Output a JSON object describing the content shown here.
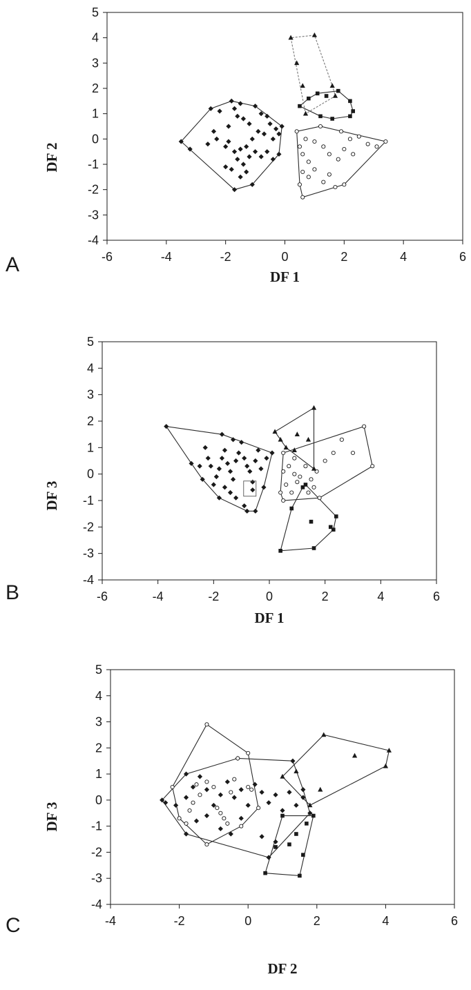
{
  "chart_data": [
    {
      "type": "scatter",
      "panel_label": "A",
      "xlabel": "DF 1",
      "ylabel": "DF 2",
      "xlim": [
        -6,
        6
      ],
      "ylim": [
        -4,
        5
      ],
      "xticks": [
        -6,
        -4,
        -2,
        0,
        2,
        4,
        6
      ],
      "yticks": [
        -4,
        -3,
        -2,
        -1,
        0,
        1,
        2,
        3,
        4,
        5
      ],
      "series": [
        {
          "marker": "diamond-filled",
          "points": [
            [
              -2.4,
              0.3
            ],
            [
              -2.3,
              0
            ],
            [
              -2.2,
              1.1
            ],
            [
              -1.8,
              1.5
            ],
            [
              -1.7,
              1.2
            ],
            [
              -1.6,
              0.9
            ],
            [
              -1.9,
              0.5
            ],
            [
              -1.5,
              1.4
            ],
            [
              -1.4,
              0.8
            ],
            [
              -1.2,
              0.6
            ],
            [
              -1.0,
              1.3
            ],
            [
              -0.8,
              1.0
            ],
            [
              -0.6,
              0.9
            ],
            [
              -0.5,
              0.6
            ],
            [
              -0.3,
              0.4
            ],
            [
              -0.2,
              0.2
            ],
            [
              -0.4,
              0
            ],
            [
              -0.7,
              0.2
            ],
            [
              -0.9,
              0.3
            ],
            [
              -1.1,
              0
            ],
            [
              -1.3,
              -0.3
            ],
            [
              -1.5,
              -0.4
            ],
            [
              -1.7,
              -0.5
            ],
            [
              -1.9,
              -0.1
            ],
            [
              -2.0,
              -0.3
            ],
            [
              -1.6,
              -0.8
            ],
            [
              -1.4,
              -1.0
            ],
            [
              -1.2,
              -0.7
            ],
            [
              -1.0,
              -0.5
            ],
            [
              -0.8,
              -0.7
            ],
            [
              -0.6,
              -0.5
            ],
            [
              -0.4,
              -0.8
            ],
            [
              -0.2,
              -0.6
            ],
            [
              -1.3,
              -1.3
            ],
            [
              -1.5,
              -1.5
            ],
            [
              -1.8,
              -1.2
            ],
            [
              -2.0,
              -1.1
            ],
            [
              -1.7,
              -2.0
            ],
            [
              -1.1,
              -1.8
            ],
            [
              -3.5,
              -0.1
            ],
            [
              -3.2,
              -0.4
            ],
            [
              -2.6,
              -0.2
            ],
            [
              -2.5,
              1.2
            ],
            [
              -0.1,
              0.5
            ]
          ]
        },
        {
          "marker": "circle-open",
          "points": [
            [
              0.4,
              0.3
            ],
            [
              0.5,
              -0.3
            ],
            [
              0.6,
              -0.6
            ],
            [
              0.8,
              -0.9
            ],
            [
              0.7,
              0
            ],
            [
              1.0,
              -0.1
            ],
            [
              1.3,
              -0.3
            ],
            [
              1.5,
              -0.6
            ],
            [
              1.8,
              -0.8
            ],
            [
              2.0,
              -0.4
            ],
            [
              2.3,
              -0.6
            ],
            [
              2.5,
              0.1
            ],
            [
              2.8,
              -0.2
            ],
            [
              3.1,
              -0.3
            ],
            [
              3.4,
              -0.1
            ],
            [
              0.6,
              -1.3
            ],
            [
              0.8,
              -1.5
            ],
            [
              1.0,
              -1.2
            ],
            [
              1.3,
              -1.7
            ],
            [
              1.5,
              -1.4
            ],
            [
              1.7,
              -1.9
            ],
            [
              2.0,
              -1.8
            ],
            [
              0.5,
              -1.8
            ],
            [
              0.6,
              -2.3
            ],
            [
              2.2,
              0
            ],
            [
              1.9,
              0.3
            ],
            [
              1.2,
              0.5
            ]
          ]
        },
        {
          "marker": "square-filled",
          "points": [
            [
              0.5,
              1.3
            ],
            [
              0.8,
              1.6
            ],
            [
              1.1,
              1.8
            ],
            [
              1.4,
              1.7
            ],
            [
              1.8,
              1.9
            ],
            [
              2.2,
              1.5
            ],
            [
              2.3,
              1.1
            ],
            [
              1.6,
              0.8
            ],
            [
              1.2,
              0.9
            ],
            [
              2.2,
              0.9
            ]
          ]
        },
        {
          "marker": "triangle-filled",
          "points": [
            [
              0.2,
              4.0
            ],
            [
              1.0,
              4.1
            ],
            [
              0.4,
              3.0
            ],
            [
              0.6,
              2.1
            ],
            [
              1.6,
              2.1
            ],
            [
              1.7,
              1.7
            ],
            [
              0.7,
              1.0
            ]
          ]
        }
      ]
    },
    {
      "type": "scatter",
      "panel_label": "B",
      "xlabel": "DF 1",
      "ylabel": "DF 3",
      "xlim": [
        -6,
        6
      ],
      "ylim": [
        -4,
        5
      ],
      "xticks": [
        -6,
        -4,
        -2,
        0,
        2,
        4,
        6
      ],
      "yticks": [
        -4,
        -3,
        -2,
        -1,
        0,
        1,
        2,
        3,
        4,
        5
      ],
      "series": [
        {
          "marker": "diamond-filled",
          "points": [
            [
              -3.7,
              1.8
            ],
            [
              -2.8,
              0.4
            ],
            [
              -2.5,
              0.3
            ],
            [
              -2.3,
              1.0
            ],
            [
              -2.2,
              0.6
            ],
            [
              -2.1,
              0.3
            ],
            [
              -1.9,
              -0.1
            ],
            [
              -1.8,
              0.2
            ],
            [
              -1.7,
              0.6
            ],
            [
              -1.6,
              0.9
            ],
            [
              -1.5,
              0.4
            ],
            [
              -1.4,
              0.1
            ],
            [
              -1.3,
              -0.2
            ],
            [
              -1.2,
              0.5
            ],
            [
              -1.1,
              0.8
            ],
            [
              -1.0,
              1.2
            ],
            [
              -0.9,
              0.6
            ],
            [
              -0.8,
              0.3
            ],
            [
              -0.7,
              0.1
            ],
            [
              -0.6,
              -0.3
            ],
            [
              -0.5,
              0.5
            ],
            [
              -0.4,
              0.9
            ],
            [
              -0.3,
              0.2
            ],
            [
              -0.2,
              -0.5
            ],
            [
              -0.1,
              0.6
            ],
            [
              -1.6,
              -0.5
            ],
            [
              -1.4,
              -0.7
            ],
            [
              -1.8,
              -0.9
            ],
            [
              -2.0,
              -0.4
            ],
            [
              -1.2,
              -0.9
            ],
            [
              -0.9,
              -1.2
            ],
            [
              -0.6,
              -0.6
            ],
            [
              -0.5,
              -1.4
            ],
            [
              -0.8,
              -1.4
            ],
            [
              -1.7,
              1.5
            ],
            [
              -1.3,
              1.3
            ],
            [
              -2.4,
              -0.2
            ],
            [
              0.1,
              0.8
            ]
          ]
        },
        {
          "marker": "circle-open",
          "points": [
            [
              0.5,
              0.8
            ],
            [
              0.7,
              0.3
            ],
            [
              0.9,
              0.6
            ],
            [
              1.1,
              -0.1
            ],
            [
              1.3,
              0.3
            ],
            [
              1.5,
              -0.2
            ],
            [
              1.7,
              0.1
            ],
            [
              2.0,
              0.5
            ],
            [
              2.3,
              0.8
            ],
            [
              2.6,
              1.3
            ],
            [
              3.0,
              0.8
            ],
            [
              3.4,
              1.8
            ],
            [
              3.7,
              0.3
            ],
            [
              0.6,
              -0.4
            ],
            [
              0.8,
              -0.7
            ],
            [
              1.0,
              -0.3
            ],
            [
              1.4,
              -0.7
            ],
            [
              1.8,
              -0.9
            ],
            [
              0.5,
              -1.0
            ],
            [
              0.4,
              -0.7
            ],
            [
              0.9,
              0
            ],
            [
              0.5,
              0.1
            ],
            [
              1.6,
              -0.5
            ]
          ]
        },
        {
          "marker": "square-filled",
          "points": [
            [
              0.4,
              -2.9
            ],
            [
              0.8,
              -1.3
            ],
            [
              1.2,
              -0.5
            ],
            [
              1.5,
              -1.8
            ],
            [
              1.6,
              -2.8
            ],
            [
              2.2,
              -2.0
            ],
            [
              2.3,
              -2.1
            ],
            [
              2.4,
              -1.6
            ],
            [
              1.3,
              -0.4
            ]
          ]
        },
        {
          "marker": "triangle-filled",
          "points": [
            [
              0.2,
              1.6
            ],
            [
              0.4,
              1.3
            ],
            [
              0.6,
              1.0
            ],
            [
              1.0,
              1.5
            ],
            [
              1.4,
              1.3
            ],
            [
              1.6,
              2.5
            ],
            [
              1.6,
              0.2
            ],
            [
              0.9,
              0.9
            ]
          ]
        }
      ]
    },
    {
      "type": "scatter",
      "panel_label": "C",
      "xlabel": "DF 2",
      "ylabel": "DF 3",
      "xlim": [
        -4,
        6
      ],
      "ylim": [
        -4,
        5
      ],
      "xticks": [
        -4,
        -2,
        0,
        2,
        4,
        6
      ],
      "yticks": [
        -4,
        -3,
        -2,
        -1,
        0,
        1,
        2,
        3,
        4,
        5
      ],
      "series": [
        {
          "marker": "diamond-filled",
          "points": [
            [
              -2.5,
              0
            ],
            [
              -2.4,
              -0.1
            ],
            [
              -2.1,
              -0.2
            ],
            [
              -1.8,
              0.1
            ],
            [
              -1.6,
              0.5
            ],
            [
              -1.4,
              0.9
            ],
            [
              -1.2,
              0.4
            ],
            [
              -1.0,
              -0.2
            ],
            [
              -0.8,
              0.2
            ],
            [
              -0.6,
              0.7
            ],
            [
              -0.4,
              0.1
            ],
            [
              -0.2,
              0.4
            ],
            [
              0,
              -0.2
            ],
            [
              0.2,
              0.6
            ],
            [
              0.4,
              0.3
            ],
            [
              0.6,
              -0.1
            ],
            [
              0.8,
              0.2
            ],
            [
              1.0,
              -0.4
            ],
            [
              1.2,
              0.3
            ],
            [
              1.4,
              -0.2
            ],
            [
              1.6,
              0.1
            ],
            [
              1.8,
              -0.5
            ],
            [
              -1.5,
              -0.8
            ],
            [
              -1.2,
              -0.6
            ],
            [
              -0.8,
              -1.1
            ],
            [
              -0.5,
              -1.3
            ],
            [
              -0.2,
              -0.7
            ],
            [
              -1.8,
              -1.3
            ],
            [
              -0.3,
              1.6
            ],
            [
              0.4,
              -1.4
            ],
            [
              0.6,
              -2.2
            ],
            [
              0.8,
              -1.6
            ],
            [
              1.3,
              1.5
            ],
            [
              1.6,
              0.4
            ],
            [
              -1.8,
              1.0
            ]
          ]
        },
        {
          "marker": "circle-open",
          "points": [
            [
              -2.2,
              0.5
            ],
            [
              -2.0,
              -0.7
            ],
            [
              -1.8,
              -0.9
            ],
            [
              -1.7,
              -0.4
            ],
            [
              -1.5,
              0.6
            ],
            [
              -1.4,
              0.2
            ],
            [
              -1.2,
              0.7
            ],
            [
              -1.0,
              0.5
            ],
            [
              -0.9,
              -0.3
            ],
            [
              -0.7,
              -0.7
            ],
            [
              -0.6,
              -0.9
            ],
            [
              -0.5,
              0.3
            ],
            [
              -0.4,
              0.8
            ],
            [
              -0.3,
              1.6
            ],
            [
              -0.2,
              -1.0
            ],
            [
              0,
              0.5
            ],
            [
              0,
              1.8
            ],
            [
              0.1,
              0.4
            ],
            [
              0.3,
              -0.3
            ],
            [
              -1.2,
              2.9
            ],
            [
              -1.2,
              -1.7
            ],
            [
              -0.8,
              -0.5
            ],
            [
              -1.6,
              -0.1
            ]
          ]
        },
        {
          "marker": "square-filled",
          "points": [
            [
              0.5,
              -2.8
            ],
            [
              0.8,
              -1.8
            ],
            [
              1.0,
              -0.6
            ],
            [
              1.2,
              -1.7
            ],
            [
              1.4,
              -1.3
            ],
            [
              1.5,
              -2.9
            ],
            [
              1.6,
              -2.1
            ],
            [
              1.7,
              -0.9
            ],
            [
              1.9,
              -0.6
            ]
          ]
        },
        {
          "marker": "triangle-filled",
          "points": [
            [
              1.0,
              0.9
            ],
            [
              1.4,
              1.1
            ],
            [
              1.8,
              -0.2
            ],
            [
              2.1,
              0.4
            ],
            [
              2.2,
              2.5
            ],
            [
              3.1,
              1.7
            ],
            [
              4.1,
              1.9
            ],
            [
              4.0,
              1.3
            ]
          ]
        }
      ]
    }
  ]
}
